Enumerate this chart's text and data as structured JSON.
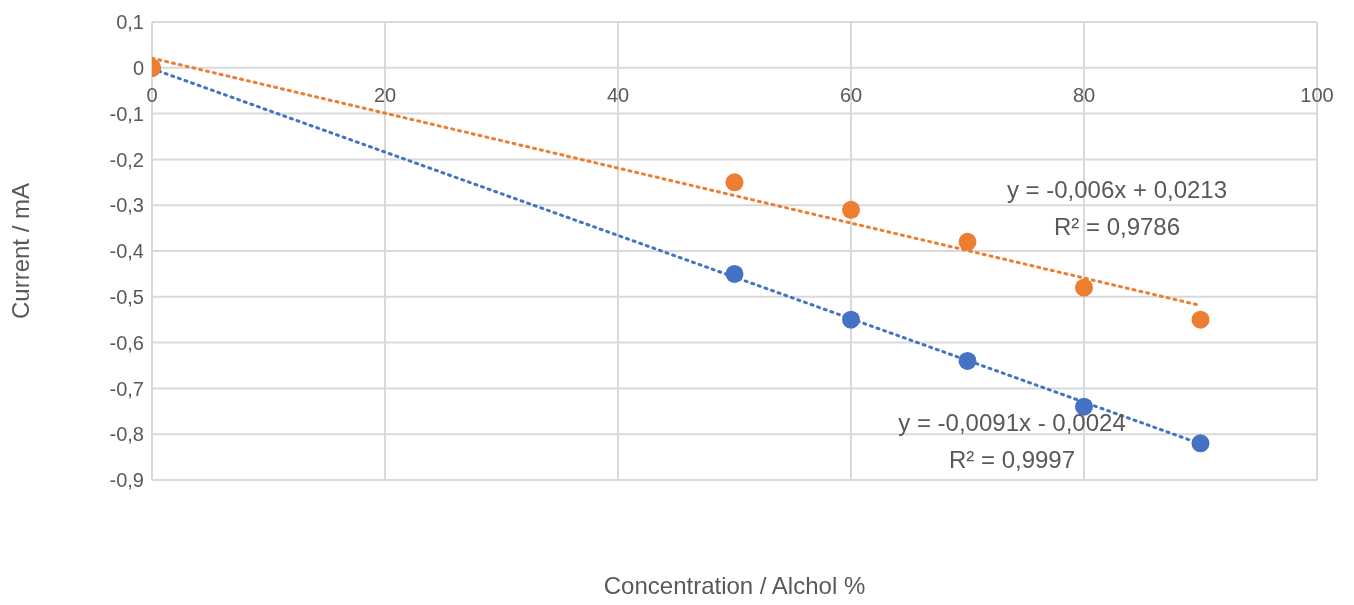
{
  "chart_data": {
    "type": "scatter",
    "xlabel": "Concentration / Alchol %",
    "ylabel": "Current / mA",
    "xlim": [
      0,
      100
    ],
    "xticks": [
      0,
      20,
      40,
      60,
      80,
      100
    ],
    "ylim": [
      -0.9,
      0.1
    ],
    "yticks": [
      {
        "value": 0.1,
        "label": "0,1"
      },
      {
        "value": 0,
        "label": "0"
      },
      {
        "value": -0.1,
        "label": "-0,1"
      },
      {
        "value": -0.2,
        "label": "-0,2"
      },
      {
        "value": -0.3,
        "label": "-0,3"
      },
      {
        "value": -0.4,
        "label": "-0,4"
      },
      {
        "value": -0.5,
        "label": "-0,5"
      },
      {
        "value": -0.6,
        "label": "-0,6"
      },
      {
        "value": -0.7,
        "label": "-0,7"
      },
      {
        "value": -0.8,
        "label": "-0,8"
      },
      {
        "value": -0.9,
        "label": "-0,9"
      }
    ],
    "grid": true,
    "legend": false,
    "marker": "circle",
    "series": [
      {
        "color": "#4472c4",
        "x": [
          0,
          50,
          60,
          70,
          80,
          90
        ],
        "values": [
          0,
          -0.45,
          -0.55,
          -0.64,
          -0.74,
          -0.82
        ]
      },
      {
        "color": "#ed7d31",
        "x": [
          0,
          50,
          60,
          70,
          80,
          90
        ],
        "values": [
          0,
          -0.25,
          -0.31,
          -0.38,
          -0.48,
          -0.55
        ]
      },
      {
        "type": "line",
        "color": "#4472c4",
        "line_style": "dotted",
        "marker": "none",
        "x": [
          0,
          90
        ],
        "values": [
          -0.002,
          -0.821
        ]
      },
      {
        "type": "line",
        "color": "#ed7d31",
        "line_style": "dotted",
        "marker": "none",
        "x": [
          0,
          90
        ],
        "values": [
          0.021,
          -0.519
        ]
      }
    ],
    "annotations": [
      "y = -0,006x + 0,0213",
      "R² = 0,9786",
      "y = -0,0091x - 0,0024",
      "R² = 0,9997"
    ]
  }
}
